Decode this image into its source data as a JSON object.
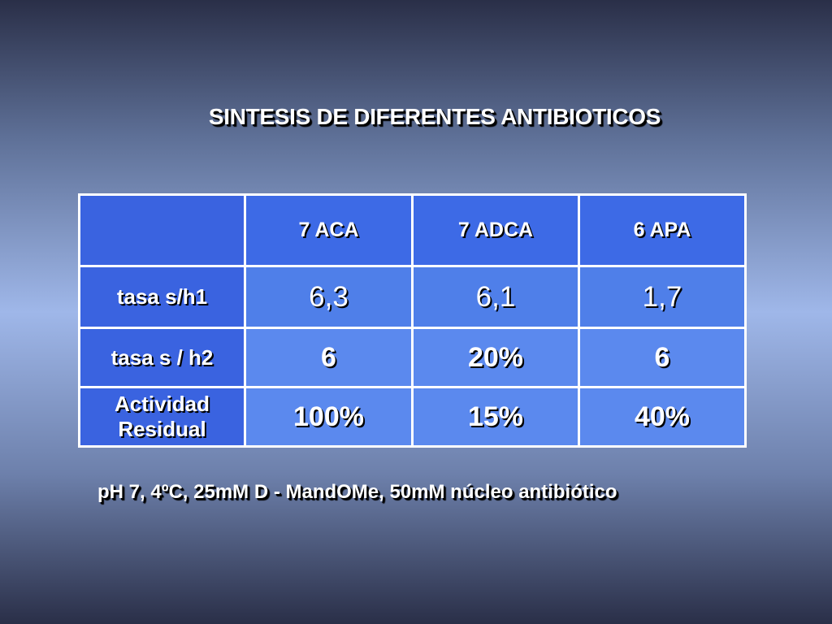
{
  "title": "SINTESIS DE DIFERENTES ANTIBIOTICOS",
  "table": {
    "corner": "",
    "columns": [
      "7 ACA",
      "7 ADCA",
      "6 APA"
    ],
    "rows": [
      {
        "label": "tasa  s/h1",
        "values": [
          "6,3",
          "6,1",
          "1,7"
        ]
      },
      {
        "label": "tasa  s / h2",
        "values": [
          "6",
          "20%",
          "6"
        ]
      },
      {
        "label_line1": "Actividad",
        "label_line2": "Residual",
        "values": [
          "100%",
          "15%",
          "40%"
        ]
      }
    ]
  },
  "footnote": "pH 7, 4ºC, 25mM D - MandOMe, 50mM núcleo antibiótico",
  "colors": {
    "header_cell": "#3d6ae6",
    "row_head_cell": "#3a63e0",
    "value_cell": "#5b89ee"
  }
}
